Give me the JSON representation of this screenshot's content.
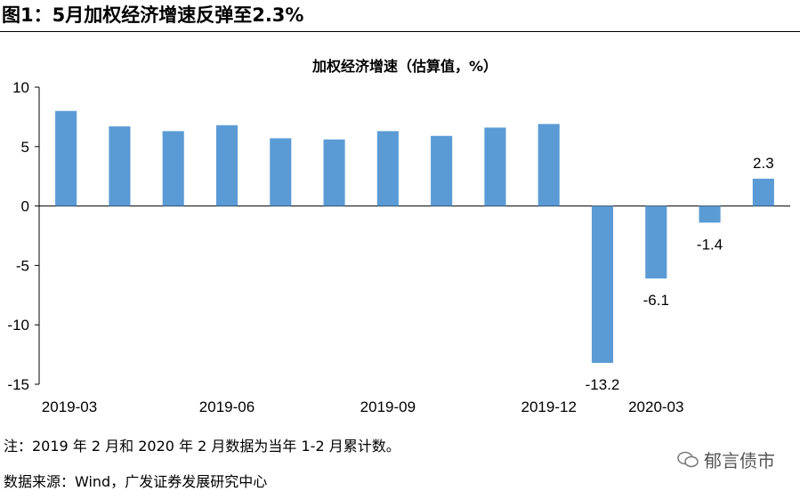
{
  "figure_title": "图1：5月加权经济增速反弹至2.3%",
  "note": "注：2019 年 2 月和 2020 年 2 月数据为当年 1-2 月累计数。",
  "source": "数据来源：Wind，广发证券发展研究中心",
  "watermark": "郁言债市",
  "chart_data": {
    "type": "bar",
    "title": "加权经济增速（估算值，%）",
    "categories": [
      "2019-03",
      "2019-04",
      "2019-05",
      "2019-06",
      "2019-07",
      "2019-08",
      "2019-09",
      "2019-10",
      "2019-11",
      "2019-12",
      "2020-02",
      "2020-03",
      "2020-04",
      "2020-05"
    ],
    "x_tick_labels": [
      "2019-03",
      "2019-06",
      "2019-09",
      "2019-12",
      "2020-03"
    ],
    "values": [
      8.0,
      6.7,
      6.3,
      6.8,
      5.7,
      5.6,
      6.3,
      5.9,
      6.6,
      6.9,
      -13.2,
      -6.1,
      -1.4,
      2.3
    ],
    "data_labels": {
      "10": "-13.2",
      "11": "-6.1",
      "12": "-1.4",
      "13": "2.3"
    },
    "ylim": [
      -15,
      10
    ],
    "yticks": [
      10,
      5,
      0,
      -5,
      -10,
      -15
    ],
    "bar_color": "#5b9bd5",
    "grid": false
  }
}
